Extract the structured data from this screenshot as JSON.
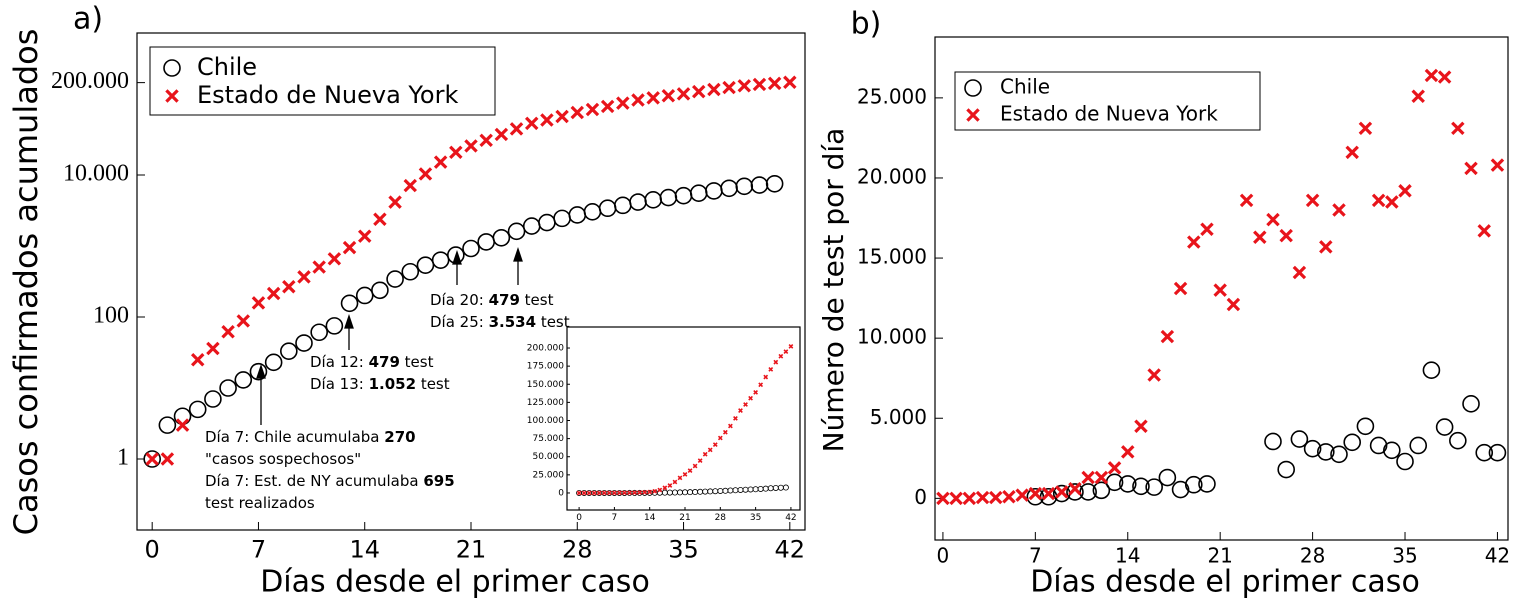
{
  "chart_data": [
    {
      "type": "scatter",
      "panel_label": "a)",
      "xlabel": "Días desde el primer caso",
      "ylabel": "Casos confirmados acumulados",
      "yscale": "log",
      "xlim": [
        -1,
        43
      ],
      "ylim": [
        0.1,
        1000000
      ],
      "xticks": [
        0,
        7,
        14,
        21,
        28,
        35,
        42
      ],
      "yticks": [
        1,
        100,
        {
          "value": 10000,
          "label": "10.000"
        },
        {
          "value": 200000,
          "label": "200.000"
        }
      ],
      "legend": "upper left",
      "series": [
        {
          "name": "Chile",
          "marker": "circle",
          "color": "#000000",
          "x": [
            0,
            1,
            2,
            3,
            4,
            5,
            6,
            7,
            8,
            9,
            10,
            11,
            12,
            13,
            14,
            15,
            16,
            17,
            18,
            19,
            20,
            21,
            22,
            23,
            24,
            25,
            26,
            27,
            28,
            29,
            30,
            31,
            32,
            33,
            34,
            35,
            36,
            37,
            38,
            39,
            40,
            41
          ],
          "values": [
            1,
            3,
            4,
            5,
            7,
            10,
            13,
            17,
            23,
            33,
            43,
            61,
            75,
            156,
            201,
            238,
            342,
            434,
            537,
            632,
            746,
            922,
            1142,
            1306,
            1610,
            1909,
            2139,
            2449,
            2738,
            3031,
            3404,
            3737,
            4161,
            4471,
            4815,
            5116,
            5546,
            5972,
            6501,
            6927,
            7213,
            7525
          ]
        },
        {
          "name": "Estado de Nueva York",
          "marker": "x",
          "color": "#e8141b",
          "x": [
            0,
            1,
            2,
            3,
            4,
            5,
            6,
            7,
            8,
            9,
            10,
            11,
            12,
            13,
            14,
            15,
            16,
            17,
            18,
            19,
            20,
            21,
            22,
            23,
            24,
            25,
            26,
            27,
            28,
            29,
            30,
            31,
            32,
            33,
            34,
            35,
            36,
            37,
            38,
            39,
            40,
            41,
            42
          ],
          "values": [
            1,
            1,
            3,
            25,
            36,
            62,
            88,
            158,
            214,
            267,
            367,
            505,
            660,
            950,
            1374,
            2382,
            4152,
            7102,
            10356,
            15168,
            20875,
            25665,
            30811,
            37258,
            44635,
            53363,
            59513,
            66663,
            75833,
            83712,
            92381,
            102863,
            113704,
            122031,
            130689,
            138836,
            149316,
            159937,
            170512,
            180458,
            188694,
            195031,
            202208
          ]
        }
      ],
      "annotations": [
        {
          "lines": [
            [
              {
                "text": "Día 7: Chile acumulaba "
              },
              {
                "text": "270",
                "bold": true
              }
            ],
            [
              {
                "text": "\"casos sospechosos\""
              }
            ],
            [
              {
                "text": "Día 7: Est. de NY acumulaba "
              },
              {
                "text": "695",
                "bold": true
              }
            ],
            [
              {
                "text": "test realizados"
              }
            ]
          ]
        },
        {
          "lines": [
            [
              {
                "text": "Día 12: "
              },
              {
                "text": "479",
                "bold": true
              },
              {
                "text": " test"
              }
            ],
            [
              {
                "text": "Día 13: "
              },
              {
                "text": "1.052",
                "bold": true
              },
              {
                "text": " test"
              }
            ]
          ]
        },
        {
          "lines": [
            [
              {
                "text": "Día 20: "
              },
              {
                "text": "479",
                "bold": true
              },
              {
                "text": " test"
              }
            ],
            [
              {
                "text": "Día 25: "
              },
              {
                "text": "3.534",
                "bold": true
              },
              {
                "text": " test"
              }
            ]
          ]
        }
      ]
    },
    {
      "type": "scatter",
      "panel_label": "b)",
      "xlabel": "Días desde el primer caso",
      "ylabel": "Número de test por día",
      "yscale": "linear",
      "xlim": [
        -0.6,
        42.8
      ],
      "ylim": [
        -2600,
        28800
      ],
      "xticks": [
        0,
        7,
        14,
        21,
        28,
        35,
        42
      ],
      "yticks": [
        0,
        {
          "value": 5000,
          "label": "5.000"
        },
        {
          "value": 10000,
          "label": "10.000"
        },
        {
          "value": 15000,
          "label": "15.000"
        },
        {
          "value": 20000,
          "label": "20.000"
        },
        {
          "value": 25000,
          "label": "25.000"
        }
      ],
      "legend": "upper left",
      "series": [
        {
          "name": "Chile",
          "marker": "circle",
          "color": "#000000",
          "x": [
            7,
            8,
            9,
            10,
            11,
            12,
            13,
            14,
            15,
            16,
            17,
            18,
            19,
            20,
            25,
            26,
            27,
            28,
            29,
            30,
            31,
            32,
            33,
            34,
            35,
            36,
            37,
            38,
            39,
            40,
            41,
            42
          ],
          "values": [
            100,
            100,
            300,
            400,
            400,
            500,
            1000,
            900,
            750,
            700,
            1300,
            550,
            850,
            900,
            3550,
            1800,
            3700,
            3100,
            2900,
            2750,
            3500,
            4500,
            3300,
            3000,
            2300,
            3300,
            8000,
            4450,
            3600,
            5900,
            2850,
            2850
          ]
        },
        {
          "name": "Estado de Nueva York",
          "marker": "x",
          "color": "#e8141b",
          "x": [
            0,
            1,
            2,
            3,
            4,
            5,
            6,
            7,
            8,
            9,
            10,
            11,
            12,
            13,
            14,
            15,
            16,
            17,
            18,
            19,
            20,
            21,
            22,
            23,
            24,
            25,
            26,
            27,
            28,
            29,
            30,
            31,
            32,
            33,
            34,
            35,
            36,
            37,
            38,
            39,
            40,
            41,
            42
          ],
          "values": [
            0,
            0,
            0,
            50,
            50,
            100,
            200,
            300,
            300,
            400,
            600,
            1300,
            1300,
            1900,
            2900,
            4500,
            7700,
            10100,
            13100,
            16000,
            16800,
            13000,
            12100,
            18600,
            16300,
            17400,
            16400,
            14100,
            18600,
            15700,
            18000,
            21600,
            23100,
            18600,
            18500,
            19200,
            25100,
            26400,
            26300,
            23100,
            20600,
            16700,
            20800
          ]
        }
      ]
    },
    {
      "type": "scatter",
      "yscale": "linear",
      "xlim": [
        -2.4,
        43.8
      ],
      "ylim": [
        -23500,
        229000
      ],
      "xticks": [
        0,
        7,
        14,
        21,
        28,
        35,
        42
      ],
      "yticks": [
        0,
        {
          "value": 25000,
          "label": "25.000"
        },
        {
          "value": 50000,
          "label": "50.000"
        },
        {
          "value": 75000,
          "label": "75.000"
        },
        {
          "value": 100000,
          "label": "100.000"
        },
        {
          "value": 125000,
          "label": "125.000"
        },
        {
          "value": 150000,
          "label": "150.000"
        },
        {
          "value": 175000,
          "label": "175.000"
        },
        {
          "value": 200000,
          "label": "200.000"
        }
      ],
      "series": [
        {
          "marker": "circle",
          "color": "#000000",
          "x": [
            0,
            1,
            2,
            3,
            4,
            5,
            6,
            7,
            8,
            9,
            10,
            11,
            12,
            13,
            14,
            15,
            16,
            17,
            18,
            19,
            20,
            21,
            22,
            23,
            24,
            25,
            26,
            27,
            28,
            29,
            30,
            31,
            32,
            33,
            34,
            35,
            36,
            37,
            38,
            39,
            40,
            41
          ],
          "values": [
            1,
            3,
            4,
            5,
            7,
            10,
            13,
            17,
            23,
            33,
            43,
            61,
            75,
            156,
            201,
            238,
            342,
            434,
            537,
            632,
            746,
            922,
            1142,
            1306,
            1610,
            1909,
            2139,
            2449,
            2738,
            3031,
            3404,
            3737,
            4161,
            4471,
            4815,
            5116,
            5546,
            5972,
            6501,
            6927,
            7213,
            7525
          ]
        },
        {
          "marker": "x",
          "color": "#e8141b",
          "x": [
            0,
            1,
            2,
            3,
            4,
            5,
            6,
            7,
            8,
            9,
            10,
            11,
            12,
            13,
            14,
            15,
            16,
            17,
            18,
            19,
            20,
            21,
            22,
            23,
            24,
            25,
            26,
            27,
            28,
            29,
            30,
            31,
            32,
            33,
            34,
            35,
            36,
            37,
            38,
            39,
            40,
            41,
            42
          ],
          "values": [
            1,
            1,
            3,
            25,
            36,
            62,
            88,
            158,
            214,
            267,
            367,
            505,
            660,
            950,
            1374,
            2382,
            4152,
            7102,
            10356,
            15168,
            20875,
            25665,
            30811,
            37258,
            44635,
            53363,
            59513,
            66663,
            75833,
            83712,
            92381,
            102863,
            113704,
            122031,
            130689,
            138836,
            149316,
            159937,
            170512,
            180458,
            188694,
            195031,
            202208
          ]
        }
      ]
    }
  ]
}
